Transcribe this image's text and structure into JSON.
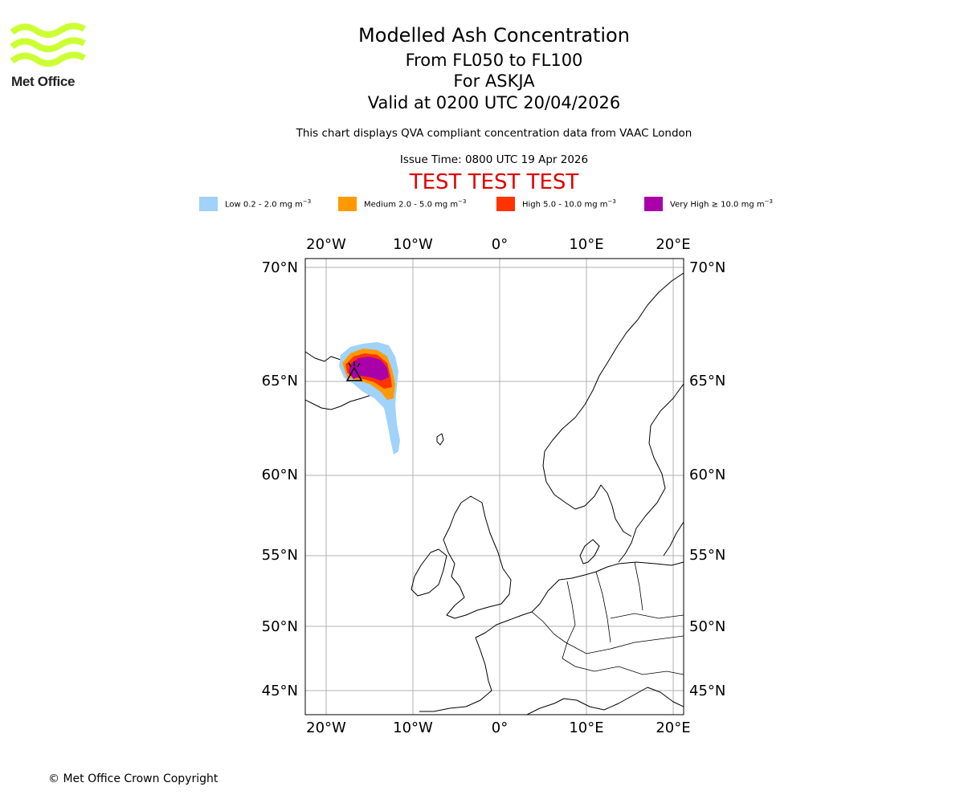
{
  "header": {
    "title": "Modelled Ash Concentration",
    "level_range": "From FL050 to FL100",
    "volcano": "For ASKJA",
    "valid_time": "Valid at 0200 UTC 20/04/2026",
    "info": "This chart displays QVA compliant concentration data from VAAC London",
    "issue_time": "Issue Time: 0800 UTC 19 Apr 2026",
    "test_banner": "TEST TEST TEST"
  },
  "logo": {
    "text": "Met Office",
    "color": "#ccff33"
  },
  "legend": [
    {
      "label": "Low 0.2 - 2.0 mg m",
      "unit_exp": "−3",
      "color": "#a0d2fa"
    },
    {
      "label": "Medium 2.0 - 5.0 mg m",
      "unit_exp": "−3",
      "color": "#ff9900"
    },
    {
      "label": "High 5.0 - 10.0 mg m",
      "unit_exp": "−3",
      "color": "#ff3300"
    },
    {
      "label": "Very High ≥ 10.0 mg m",
      "unit_exp": "−3",
      "color": "#aa00aa"
    }
  ],
  "map": {
    "lon_ticks": [
      "20°W",
      "10°W",
      "0°",
      "10°E",
      "20°E"
    ],
    "lat_ticks": [
      "70°N",
      "65°N",
      "60°N",
      "55°N",
      "50°N",
      "45°N"
    ]
  },
  "footer": {
    "copyright": "© Met Office Crown Copyright"
  }
}
